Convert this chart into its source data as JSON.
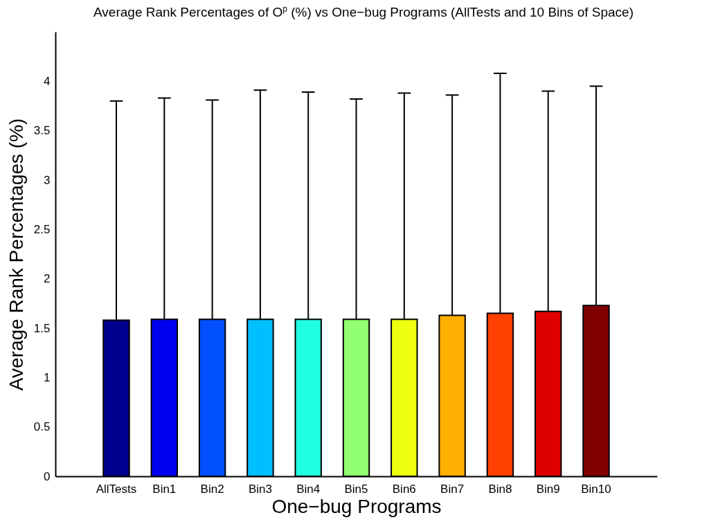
{
  "chart_data": {
    "type": "bar",
    "title": "Average Rank Percentages of O$^{p}$ (%) vs One−bug Programs (AllTests and 10 Bins of Space)",
    "xlabel": "One−bug Programs",
    "ylabel": "Average Rank Percentages (%)",
    "categories": [
      "AllTests",
      "Bin1",
      "Bin2",
      "Bin3",
      "Bin4",
      "Bin5",
      "Bin6",
      "Bin7",
      "Bin8",
      "Bin9",
      "Bin10"
    ],
    "values": [
      1.58,
      1.59,
      1.59,
      1.59,
      1.59,
      1.59,
      1.59,
      1.63,
      1.65,
      1.67,
      1.73
    ],
    "errors": [
      [
        1.58,
        3.8
      ],
      [
        1.59,
        3.83
      ],
      [
        1.59,
        3.81
      ],
      [
        1.59,
        3.91
      ],
      [
        1.59,
        3.89
      ],
      [
        1.59,
        3.82
      ],
      [
        1.59,
        3.88
      ],
      [
        1.63,
        3.86
      ],
      [
        1.65,
        4.08
      ],
      [
        1.67,
        3.9
      ],
      [
        1.73,
        3.95
      ]
    ],
    "colors": [
      "#00008f",
      "#0000f0",
      "#0050ff",
      "#00bfff",
      "#20ffdf",
      "#90ff70",
      "#efff10",
      "#ffaf00",
      "#ff4000",
      "#df0000",
      "#800000"
    ],
    "ylim": [
      0,
      4.5
    ],
    "yticks": [
      0,
      0.5,
      1,
      1.5,
      2,
      2.5,
      3,
      3.5,
      4
    ]
  }
}
